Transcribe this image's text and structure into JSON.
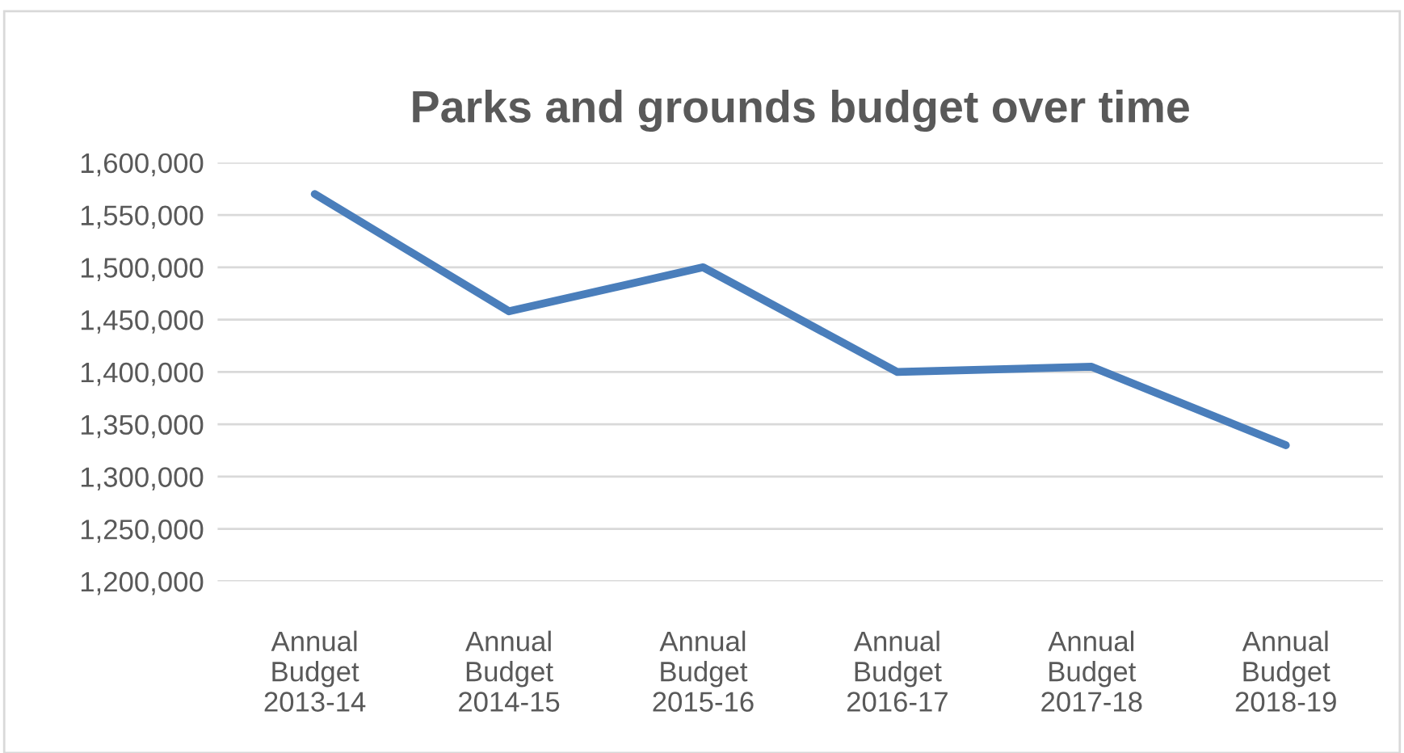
{
  "chart_data": {
    "type": "line",
    "title": "Parks and grounds budget over time",
    "categories": [
      "Annual\nBudget\n2013-14",
      "Annual\nBudget\n2014-15",
      "Annual\nBudget\n2015-16",
      "Annual\nBudget\n2016-17",
      "Annual\nBudget\n2017-18",
      "Annual\nBudget\n2018-19"
    ],
    "series": [
      {
        "color": "#4a7ebb",
        "values": [
          1570000,
          1458000,
          1500000,
          1400000,
          1405000,
          1330000
        ]
      }
    ],
    "ylim": [
      1200000,
      1600000
    ],
    "yticks": [
      {
        "value": 1200000,
        "label": "1,200,000"
      },
      {
        "value": 1250000,
        "label": "1,250,000"
      },
      {
        "value": 1300000,
        "label": "1,300,000"
      },
      {
        "value": 1350000,
        "label": "1,350,000"
      },
      {
        "value": 1400000,
        "label": "1,400,000"
      },
      {
        "value": 1450000,
        "label": "1,450,000"
      },
      {
        "value": 1500000,
        "label": "1,500,000"
      },
      {
        "value": 1550000,
        "label": "1,550,000"
      },
      {
        "value": 1600000,
        "label": "1,600,000"
      }
    ],
    "grid": "y",
    "marker": "none",
    "line_style": "solid"
  }
}
